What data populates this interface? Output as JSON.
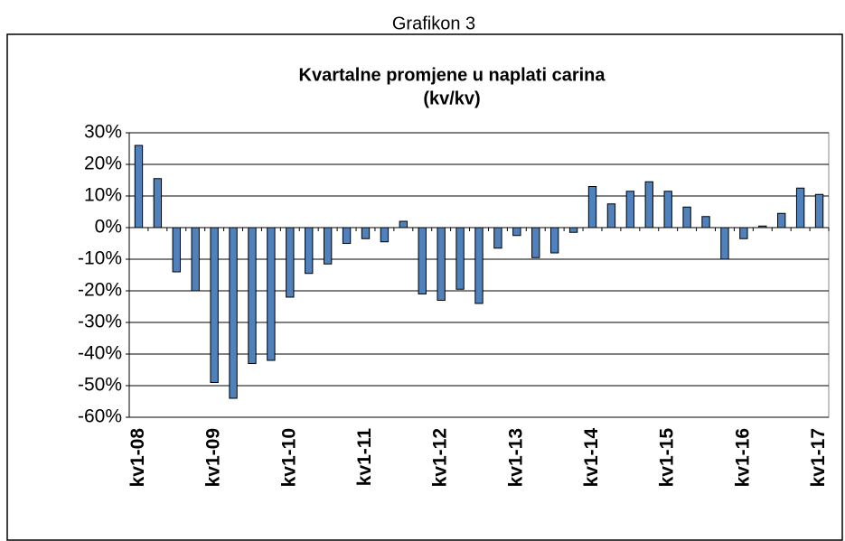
{
  "caption": "Grafikon 3",
  "chart_data": {
    "type": "bar",
    "title": "Kvartalne promjene u naplati carina",
    "subtitle": "(kv/kv)",
    "categories": [
      "kv1-08",
      null,
      null,
      null,
      "kv1-09",
      null,
      null,
      null,
      "kv1-10",
      null,
      null,
      null,
      "kv1-11",
      null,
      null,
      null,
      "kv1-12",
      null,
      null,
      null,
      "kv1-13",
      null,
      null,
      null,
      "kv1-14",
      null,
      null,
      null,
      "kv1-15",
      null,
      null,
      null,
      "kv1-16",
      null,
      null,
      null,
      "kv1-17"
    ],
    "values": [
      26,
      15.5,
      -14,
      -20,
      -49,
      -54,
      -43,
      -42,
      -22,
      -14.5,
      -11.5,
      -5,
      -3.5,
      -4.5,
      2,
      -21,
      -23,
      -19.5,
      -24,
      -6.5,
      -2.5,
      -9.5,
      -8,
      -1.5,
      13,
      7.5,
      11.5,
      14.5,
      11.5,
      6.5,
      3.5,
      -10,
      -3.5,
      0.5,
      4.5,
      12.5,
      10.5
    ],
    "color": "#4f81bd",
    "ylim": [
      -60,
      30
    ],
    "yticks": [
      {
        "value": -60,
        "label": "-60%"
      },
      {
        "value": -50,
        "label": "-50%"
      },
      {
        "value": -40,
        "label": "-40%"
      },
      {
        "value": -30,
        "label": "-30%"
      },
      {
        "value": -20,
        "label": "-20%"
      },
      {
        "value": -10,
        "label": "-10%"
      },
      {
        "value": 0,
        "label": "0%"
      },
      {
        "value": 10,
        "label": "10%"
      },
      {
        "value": 20,
        "label": "20%"
      },
      {
        "value": 30,
        "label": "30%"
      }
    ],
    "grid": true
  }
}
